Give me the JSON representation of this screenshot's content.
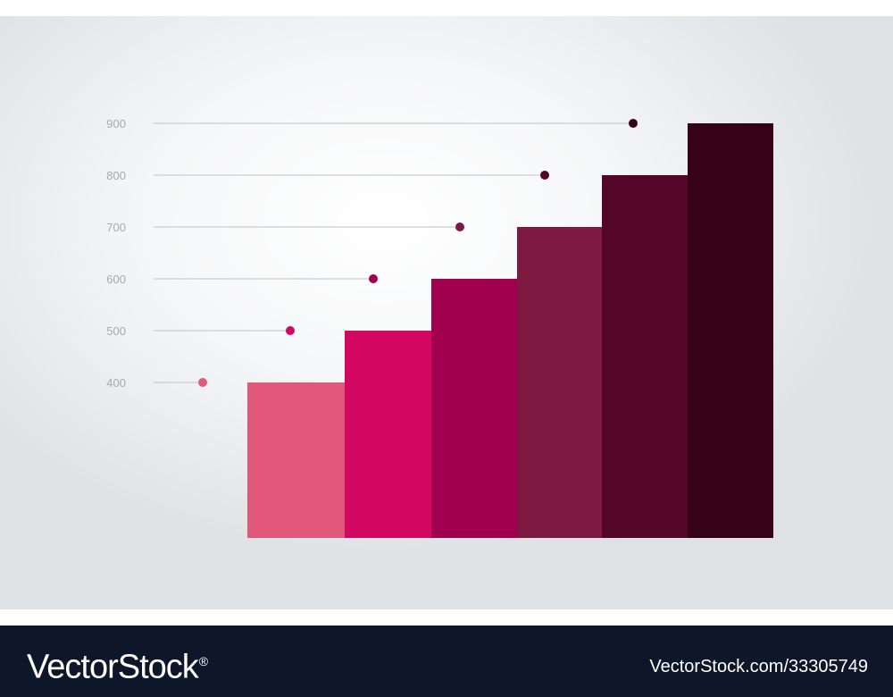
{
  "chart_data": {
    "type": "bar",
    "categories": [
      "",
      "",
      "",
      "",
      "",
      ""
    ],
    "values": [
      400,
      500,
      600,
      700,
      800,
      900
    ],
    "colors": [
      "#e2587a",
      "#d2075f",
      "#a0004e",
      "#7e1941",
      "#530627",
      "#360218"
    ],
    "marker_colors": [
      "#e2587a",
      "#d2075f",
      "#a0004e",
      "#7e1941",
      "#530627",
      "#360218"
    ],
    "y_ticks": [
      "400",
      "500",
      "600",
      "700",
      "800",
      "900"
    ],
    "tick_values": [
      400,
      500,
      600,
      700,
      800,
      900
    ],
    "ylim": [
      100,
      900
    ],
    "title": "",
    "xlabel": "",
    "ylabel": "",
    "grid": false,
    "legend": "none"
  },
  "watermark": {
    "brand": "VectorStock",
    "brand_mark": "®",
    "image_id": "VectorStock.com/33305749"
  },
  "colors": {
    "footer_bg": "#0e1629",
    "tick_text": "#a8aaad",
    "leader_line": "#bfc2c6"
  }
}
